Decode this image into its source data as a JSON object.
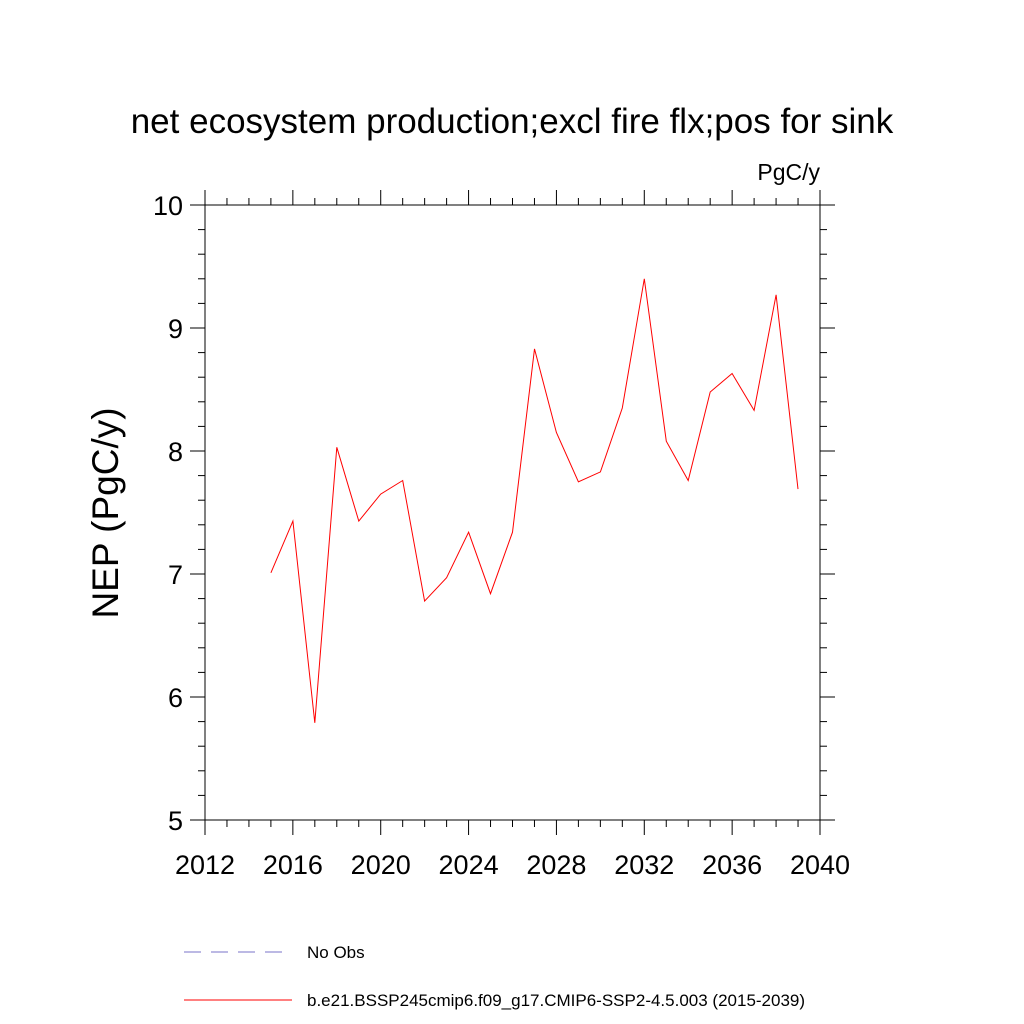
{
  "chart_data": {
    "type": "line",
    "title": "net ecosystem production;excl fire flx;pos for sink",
    "units_label": "PgC/y",
    "ylabel": "NEP  (PgC/y)",
    "xlabel": "",
    "xlim": [
      2012,
      2040
    ],
    "ylim": [
      5,
      10
    ],
    "x_ticks": [
      2012,
      2016,
      2020,
      2024,
      2028,
      2032,
      2036,
      2040
    ],
    "y_ticks": [
      5,
      6,
      7,
      8,
      9,
      10
    ],
    "grid": false,
    "legend_position": "bottom",
    "series": [
      {
        "name": "b.e21.BSSP245cmip6.f09_g17.CMIP6-SSP2-4.5.003 (2015-2039)",
        "color": "#ff0000",
        "x": [
          2015,
          2016,
          2017,
          2018,
          2019,
          2020,
          2021,
          2022,
          2023,
          2024,
          2025,
          2026,
          2027,
          2028,
          2029,
          2030,
          2031,
          2032,
          2033,
          2034,
          2035,
          2036,
          2037,
          2038,
          2039
        ],
        "values": [
          7.01,
          7.43,
          5.79,
          8.03,
          7.43,
          7.65,
          7.76,
          6.78,
          6.97,
          7.34,
          6.84,
          7.34,
          8.83,
          8.15,
          7.75,
          7.83,
          8.35,
          9.4,
          8.08,
          7.76,
          8.48,
          8.63,
          8.33,
          9.27,
          7.69
        ]
      }
    ],
    "legend": [
      {
        "label": "No Obs",
        "color": "#7a73c8",
        "style": "dashed"
      },
      {
        "label": "b.e21.BSSP245cmip6.f09_g17.CMIP6-SSP2-4.5.003 (2015-2039)",
        "color": "#ff0000",
        "style": "solid"
      }
    ]
  }
}
